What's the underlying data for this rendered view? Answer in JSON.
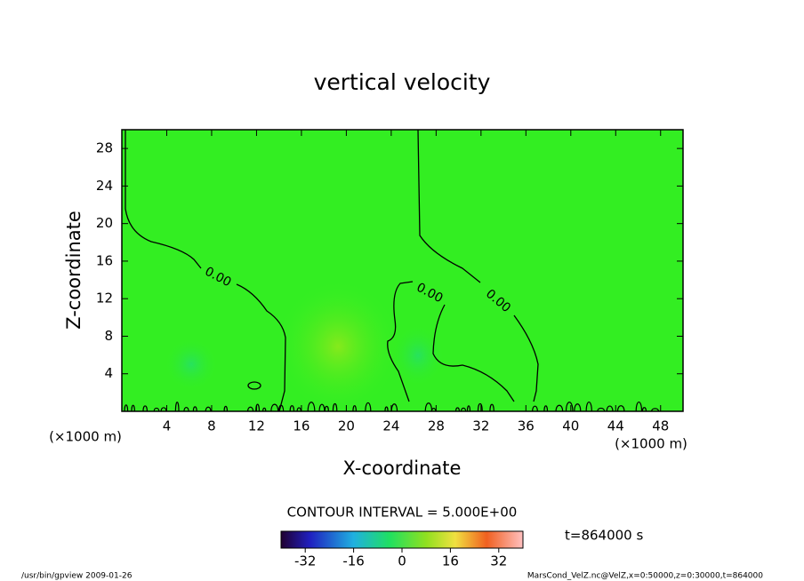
{
  "chart_data": {
    "type": "contour",
    "title": "vertical velocity",
    "xlabel": "X-coordinate",
    "ylabel": "Z-coordinate",
    "x_unit_label": "(×1000 m)",
    "y_unit_label": "(×1000 m)",
    "xlim": [
      0,
      50
    ],
    "xticks": [
      4,
      8,
      12,
      16,
      20,
      24,
      28,
      32,
      36,
      40,
      44,
      48
    ],
    "ylim": [
      0,
      30
    ],
    "yticks": [
      4,
      8,
      12,
      16,
      20,
      24,
      28
    ],
    "contour_labels": [
      "0.00",
      "0.00",
      "0.00"
    ],
    "contour_interval_text": "CONTOUR INTERVAL = 5.000E+00",
    "time_text": "t=864000 s",
    "colorbar_lim": [
      -40,
      40
    ],
    "colorbar_ticks": [
      -32,
      -16,
      0,
      16,
      32
    ],
    "footer_left": "/usr/bin/gpview  2009-01-26",
    "footer_right": "MarsCond_VelZ.nc@VelZ,x=0:50000,z=0:30000,t=864000"
  }
}
